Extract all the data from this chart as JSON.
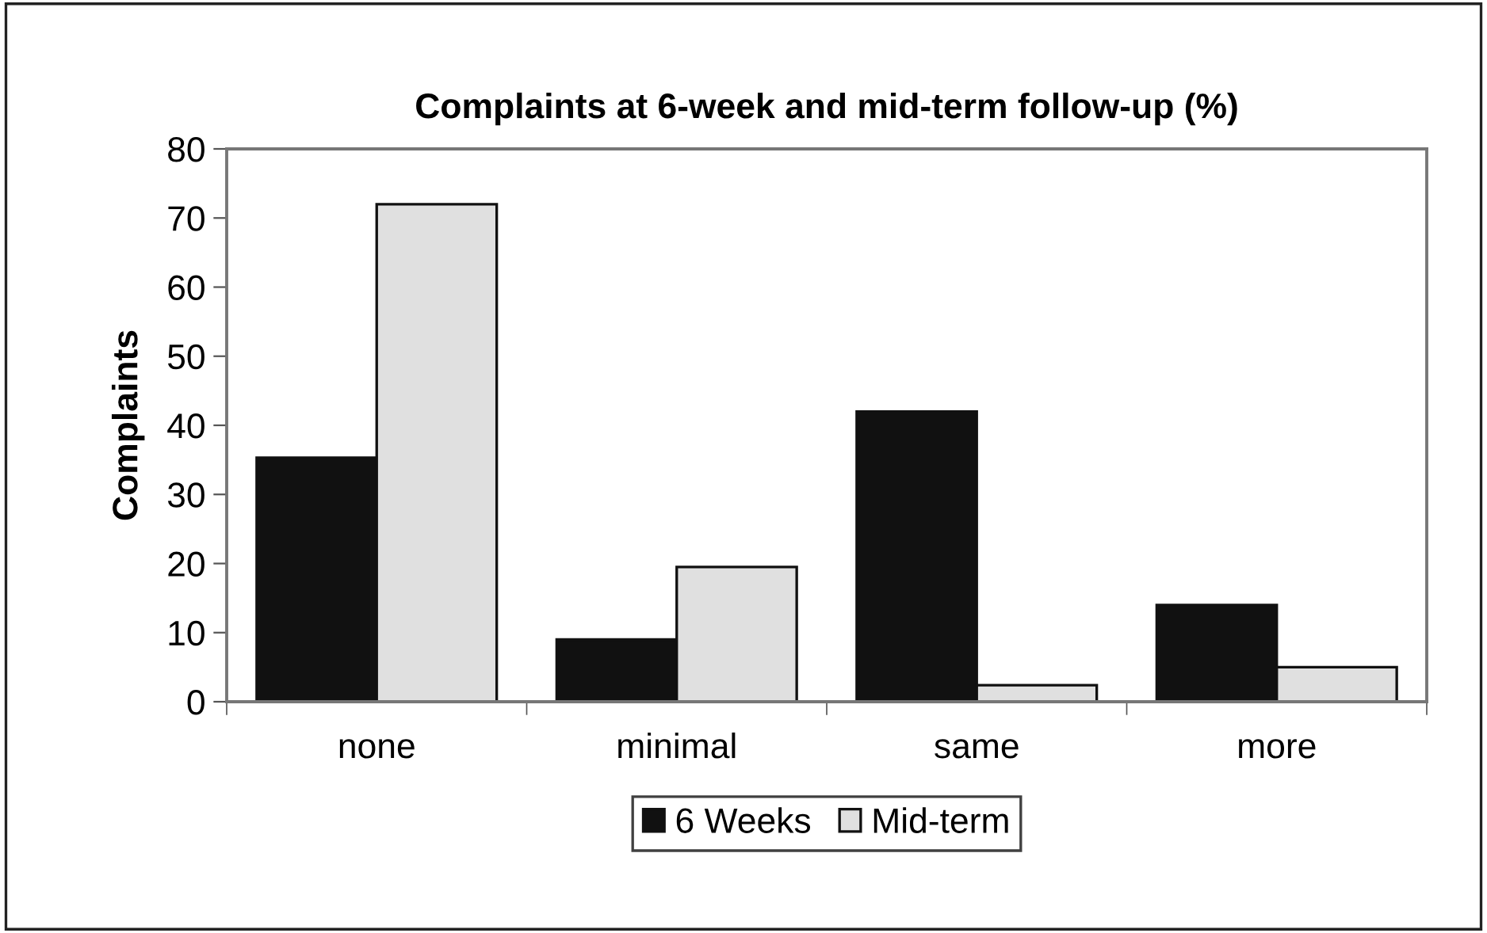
{
  "chart_data": {
    "type": "bar",
    "title": "Complaints at 6-week and mid-term follow-up (%)",
    "ylabel": "Complaints",
    "categories": [
      "none",
      "minimal",
      "same",
      "more"
    ],
    "series": [
      {
        "name": "6 Weeks",
        "color": "#111111",
        "values": [
          35.3,
          9,
          42,
          14
        ]
      },
      {
        "name": "Mid-term",
        "color": "#e0e0e0",
        "values": [
          72,
          19.5,
          2.4,
          5
        ]
      }
    ],
    "ylim": [
      0,
      80
    ],
    "yticks": [
      0,
      10,
      20,
      30,
      40,
      50,
      60,
      70,
      80
    ],
    "grid": false,
    "legend": "bottom"
  }
}
